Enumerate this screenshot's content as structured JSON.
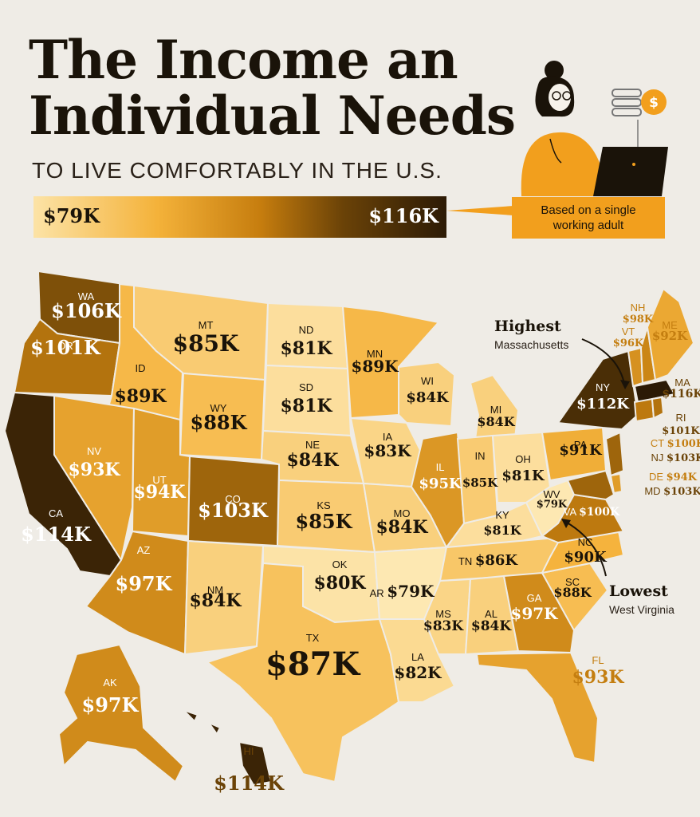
{
  "title_line1": "The Income an",
  "title_line2": "Individual Needs",
  "subtitle": "TO LIVE COMFORTABLY IN THE U.S.",
  "legend": {
    "min_label": "$79K",
    "max_label": "$116K"
  },
  "callout_line1": "Based on a single",
  "callout_line2": "working adult",
  "highest": {
    "heading": "Highest",
    "state": "Massachusetts"
  },
  "lowest": {
    "heading": "Lowest",
    "state": "West Virginia"
  },
  "colors": {
    "background": "#efece6",
    "scale_low": "#fce3a6",
    "scale_mid": "#f4b23a",
    "scale_high": "#2d1b06",
    "accent": "#f29f1d"
  },
  "states": [
    {
      "abbr": "WA",
      "value": "$106K",
      "income_k": 106
    },
    {
      "abbr": "OR",
      "value": "$101K",
      "income_k": 101
    },
    {
      "abbr": "CA",
      "value": "$114K",
      "income_k": 114
    },
    {
      "abbr": "ID",
      "value": "$89K",
      "income_k": 89
    },
    {
      "abbr": "NV",
      "value": "$93K",
      "income_k": 93
    },
    {
      "abbr": "MT",
      "value": "$85K",
      "income_k": 85
    },
    {
      "abbr": "WY",
      "value": "$88K",
      "income_k": 88
    },
    {
      "abbr": "UT",
      "value": "$94K",
      "income_k": 94
    },
    {
      "abbr": "AZ",
      "value": "$97K",
      "income_k": 97
    },
    {
      "abbr": "CO",
      "value": "$103K",
      "income_k": 103
    },
    {
      "abbr": "NM",
      "value": "$84K",
      "income_k": 84
    },
    {
      "abbr": "ND",
      "value": "$81K",
      "income_k": 81
    },
    {
      "abbr": "SD",
      "value": "$81K",
      "income_k": 81
    },
    {
      "abbr": "NE",
      "value": "$84K",
      "income_k": 84
    },
    {
      "abbr": "KS",
      "value": "$85K",
      "income_k": 85
    },
    {
      "abbr": "OK",
      "value": "$80K",
      "income_k": 80
    },
    {
      "abbr": "TX",
      "value": "$87K",
      "income_k": 87
    },
    {
      "abbr": "MN",
      "value": "$89K",
      "income_k": 89
    },
    {
      "abbr": "IA",
      "value": "$83K",
      "income_k": 83
    },
    {
      "abbr": "MO",
      "value": "$84K",
      "income_k": 84
    },
    {
      "abbr": "AR",
      "value": "$79K",
      "income_k": 79
    },
    {
      "abbr": "LA",
      "value": "$82K",
      "income_k": 82
    },
    {
      "abbr": "WI",
      "value": "$84K",
      "income_k": 84
    },
    {
      "abbr": "IL",
      "value": "$95K",
      "income_k": 95
    },
    {
      "abbr": "MS",
      "value": "$83K",
      "income_k": 83
    },
    {
      "abbr": "MI",
      "value": "$84K",
      "income_k": 84
    },
    {
      "abbr": "IN",
      "value": "$85K",
      "income_k": 85
    },
    {
      "abbr": "KY",
      "value": "$81K",
      "income_k": 81
    },
    {
      "abbr": "TN",
      "value": "$86K",
      "income_k": 86
    },
    {
      "abbr": "AL",
      "value": "$84K",
      "income_k": 84
    },
    {
      "abbr": "OH",
      "value": "$81K",
      "income_k": 81
    },
    {
      "abbr": "GA",
      "value": "$97K",
      "income_k": 97
    },
    {
      "abbr": "FL",
      "value": "$93K",
      "income_k": 93
    },
    {
      "abbr": "SC",
      "value": "$88K",
      "income_k": 88
    },
    {
      "abbr": "NC",
      "value": "$90K",
      "income_k": 90
    },
    {
      "abbr": "WV",
      "value": "$79K",
      "income_k": 79
    },
    {
      "abbr": "VA",
      "value": "$100K",
      "income_k": 100
    },
    {
      "abbr": "PA",
      "value": "$91K",
      "income_k": 91
    },
    {
      "abbr": "NY",
      "value": "$112K",
      "income_k": 112
    },
    {
      "abbr": "VT",
      "value": "$96K",
      "income_k": 96
    },
    {
      "abbr": "NH",
      "value": "$98K",
      "income_k": 98
    },
    {
      "abbr": "ME",
      "value": "$92K",
      "income_k": 92
    },
    {
      "abbr": "MA",
      "value": "$116K",
      "income_k": 116
    },
    {
      "abbr": "RI",
      "value": "$101K",
      "income_k": 101
    },
    {
      "abbr": "CT",
      "value": "$100K",
      "income_k": 100
    },
    {
      "abbr": "NJ",
      "value": "$103K",
      "income_k": 103
    },
    {
      "abbr": "DE",
      "value": "$94K",
      "income_k": 94
    },
    {
      "abbr": "MD",
      "value": "$103K",
      "income_k": 103
    },
    {
      "abbr": "AK",
      "value": "$97K",
      "income_k": 97
    },
    {
      "abbr": "HI",
      "value": "$114K",
      "income_k": 114
    }
  ]
}
